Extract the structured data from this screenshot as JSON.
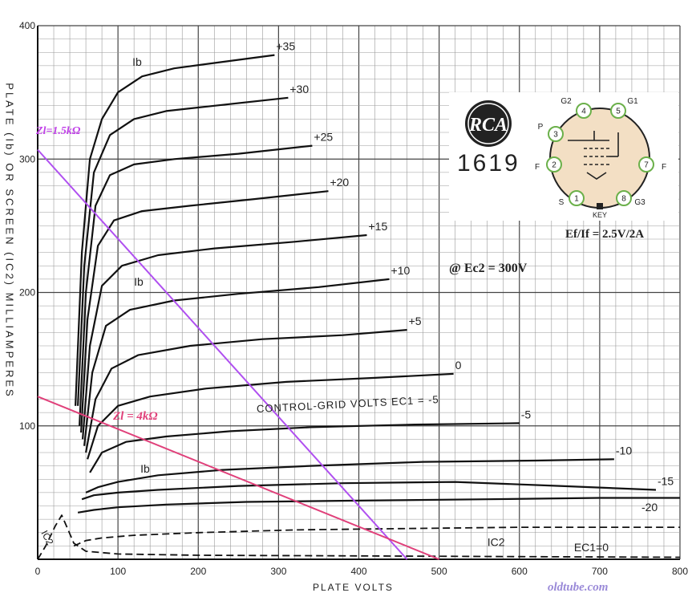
{
  "chart_data": {
    "type": "line",
    "title": "",
    "xlabel": "PLATE VOLTS",
    "ylabel": "PLATE (Ib) OR SCREEN (IC2) MILLIAMPERES",
    "xlim": [
      0,
      800
    ],
    "ylim": [
      0,
      400
    ],
    "x_ticks": [
      "0",
      "100",
      "200",
      "300",
      "400",
      "500",
      "600",
      "700",
      "800"
    ],
    "y_ticks": [
      "100",
      "200",
      "300",
      "400"
    ],
    "grid": true,
    "curve_label": "Ib",
    "screen_label": "IC2",
    "curve_label_points": [
      {
        "x": 118,
        "y": 370
      },
      {
        "x": 120,
        "y": 205
      },
      {
        "x": 128,
        "y": 65
      }
    ],
    "series": [
      {
        "name": "+35",
        "label": "+35",
        "points": [
          [
            47,
            115
          ],
          [
            55,
            230
          ],
          [
            65,
            300
          ],
          [
            80,
            330
          ],
          [
            100,
            350
          ],
          [
            130,
            362
          ],
          [
            170,
            368
          ],
          [
            220,
            372
          ],
          [
            295,
            378
          ]
        ]
      },
      {
        "name": "+30",
        "label": "+30",
        "points": [
          [
            50,
            115
          ],
          [
            58,
            220
          ],
          [
            70,
            290
          ],
          [
            90,
            318
          ],
          [
            120,
            330
          ],
          [
            160,
            336
          ],
          [
            220,
            340
          ],
          [
            312,
            346
          ]
        ]
      },
      {
        "name": "+25",
        "label": "+25",
        "points": [
          [
            52,
            100
          ],
          [
            60,
            200
          ],
          [
            72,
            265
          ],
          [
            90,
            288
          ],
          [
            120,
            296
          ],
          [
            170,
            300
          ],
          [
            250,
            304
          ],
          [
            342,
            310
          ]
        ]
      },
      {
        "name": "+20",
        "label": "+20",
        "points": [
          [
            54,
            95
          ],
          [
            62,
            180
          ],
          [
            75,
            235
          ],
          [
            95,
            254
          ],
          [
            130,
            261
          ],
          [
            190,
            265
          ],
          [
            270,
            270
          ],
          [
            362,
            276
          ]
        ]
      },
      {
        "name": "+15",
        "label": "+15",
        "points": [
          [
            56,
            90
          ],
          [
            65,
            160
          ],
          [
            80,
            205
          ],
          [
            105,
            220
          ],
          [
            150,
            228
          ],
          [
            220,
            233
          ],
          [
            320,
            238
          ],
          [
            410,
            243
          ]
        ]
      },
      {
        "name": "+10",
        "label": "+10",
        "points": [
          [
            58,
            85
          ],
          [
            68,
            140
          ],
          [
            85,
            175
          ],
          [
            115,
            187
          ],
          [
            170,
            194
          ],
          [
            250,
            199
          ],
          [
            350,
            204
          ],
          [
            438,
            210
          ]
        ]
      },
      {
        "name": "+5",
        "label": "+5",
        "points": [
          [
            60,
            80
          ],
          [
            72,
            120
          ],
          [
            92,
            143
          ],
          [
            125,
            153
          ],
          [
            190,
            160
          ],
          [
            280,
            165
          ],
          [
            380,
            168
          ],
          [
            460,
            172
          ]
        ]
      },
      {
        "name": "0",
        "label": "0",
        "points": [
          [
            62,
            75
          ],
          [
            75,
            100
          ],
          [
            100,
            115
          ],
          [
            140,
            122
          ],
          [
            210,
            128
          ],
          [
            310,
            133
          ],
          [
            420,
            136
          ],
          [
            518,
            139
          ]
        ]
      },
      {
        "name": "-5",
        "label": "-5",
        "points": [
          [
            65,
            65
          ],
          [
            80,
            80
          ],
          [
            110,
            88
          ],
          [
            160,
            92
          ],
          [
            240,
            96
          ],
          [
            340,
            99
          ],
          [
            470,
            101
          ],
          [
            600,
            102
          ]
        ]
      },
      {
        "name": "-10",
        "label": "-10",
        "points": [
          [
            60,
            50
          ],
          [
            75,
            54
          ],
          [
            100,
            58
          ],
          [
            150,
            63
          ],
          [
            230,
            67
          ],
          [
            340,
            70
          ],
          [
            480,
            73
          ],
          [
            620,
            74
          ],
          [
            718,
            75
          ]
        ]
      },
      {
        "name": "-15",
        "label": "-15",
        "points": [
          [
            55,
            45
          ],
          [
            70,
            48
          ],
          [
            100,
            50
          ],
          [
            150,
            52
          ],
          [
            250,
            55
          ],
          [
            380,
            57
          ],
          [
            520,
            58
          ],
          [
            650,
            55
          ],
          [
            770,
            52
          ]
        ]
      },
      {
        "name": "-20",
        "label": "-20",
        "points": [
          [
            50,
            35
          ],
          [
            70,
            37
          ],
          [
            100,
            39
          ],
          [
            160,
            41
          ],
          [
            260,
            43
          ],
          [
            400,
            44
          ],
          [
            560,
            45
          ],
          [
            700,
            46
          ],
          [
            800,
            46
          ]
        ]
      },
      {
        "name": "IC2",
        "label": "IC2",
        "points": [
          [
            0,
            0
          ],
          [
            10,
            10
          ],
          [
            22,
            25
          ],
          [
            30,
            33
          ],
          [
            38,
            22
          ],
          [
            45,
            12
          ],
          [
            60,
            6
          ],
          [
            100,
            4
          ],
          [
            200,
            3
          ],
          [
            400,
            2.5
          ],
          [
            600,
            2
          ],
          [
            800,
            1.5
          ]
        ]
      },
      {
        "name": "Ec1=0",
        "label": "EC1=0",
        "points": [
          [
            45,
            10
          ],
          [
            60,
            14
          ],
          [
            80,
            16
          ],
          [
            120,
            18
          ],
          [
            200,
            20
          ],
          [
            320,
            22
          ],
          [
            450,
            23
          ],
          [
            600,
            24
          ],
          [
            750,
            24
          ],
          [
            800,
            24
          ]
        ]
      }
    ],
    "load_lines": [
      {
        "name": "Zl=1.5kΩ",
        "label": "Zl=1.5kΩ",
        "color": "#b050f0",
        "points": [
          [
            0,
            307
          ],
          [
            460,
            0
          ]
        ]
      },
      {
        "name": "Zl = 4kΩ",
        "label": "Zl = 4kΩ",
        "color": "#e0407a",
        "points": [
          [
            0,
            122
          ],
          [
            500,
            0
          ]
        ]
      }
    ],
    "annotations": {
      "operating_point": "@ Ec2 = 300V",
      "heater": "Ef/If = 2.5V/2A",
      "control_grid": "CONTROL-GRID VOLTS EC1 = -5",
      "tube_type": "1619",
      "brand": "RCA",
      "watermark": "oldtube.com"
    },
    "base_pins": [
      {
        "num": "1",
        "label": "S"
      },
      {
        "num": "2",
        "label": "F"
      },
      {
        "num": "3",
        "label": "P"
      },
      {
        "num": "4",
        "label": "G2"
      },
      {
        "num": "5",
        "label": "G1"
      },
      {
        "num": "7",
        "label": "F"
      },
      {
        "num": "8",
        "label": "G3"
      }
    ],
    "base_key": "KEY"
  }
}
